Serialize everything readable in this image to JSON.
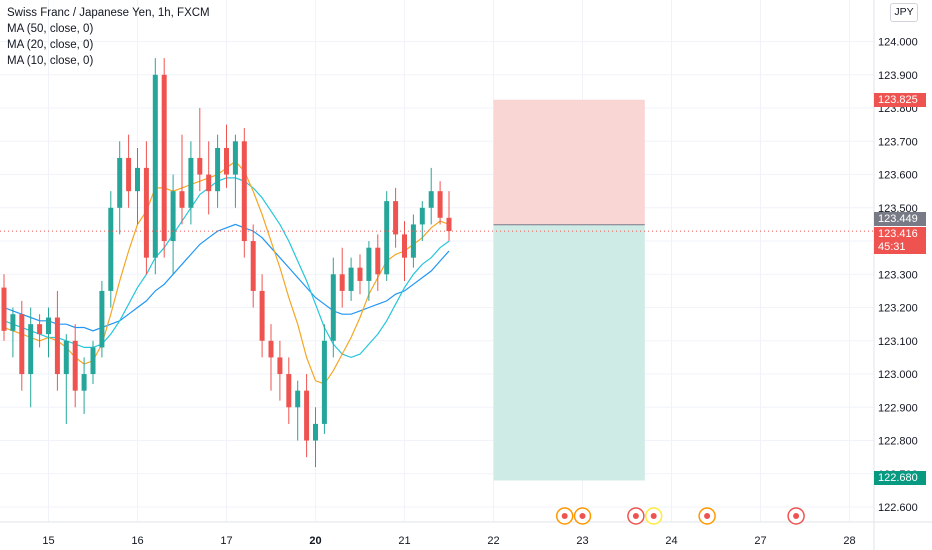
{
  "header": {
    "symbol_title": "Swiss Franc / Japanese Yen, 1h, FXCM",
    "indicators": [
      "MA (50, close, 0)",
      "MA (20, close, 0)",
      "MA (10, close, 0)"
    ],
    "currency_button": "JPY"
  },
  "price_tags": {
    "stop": "123.825",
    "entry": "123.449",
    "last": "123.416",
    "countdown": "45:31",
    "target": "122.680"
  },
  "colors": {
    "up": "#26a69a",
    "down": "#ef5350",
    "ma50": "#2196f3",
    "ma20": "#26c6da",
    "ma10": "#f6a623",
    "stop_zone": "#f9d5d3",
    "target_zone": "#cfebe6"
  },
  "chart_data": {
    "type": "candlestick",
    "title": "Swiss Franc / Japanese Yen, 1h, FXCM",
    "y_ticks": [
      "124.000",
      "123.900",
      "123.800",
      "123.700",
      "123.600",
      "123.500",
      "123.400",
      "123.300",
      "123.200",
      "123.100",
      "123.000",
      "122.900",
      "122.800",
      "122.700",
      "122.600"
    ],
    "ylim": [
      122.555,
      124.125
    ],
    "x_ticks": [
      {
        "label": "15",
        "index": 5
      },
      {
        "label": "16",
        "index": 15
      },
      {
        "label": "17",
        "index": 25
      },
      {
        "label": "20",
        "index": 35
      },
      {
        "label": "21",
        "index": 45
      },
      {
        "label": "22",
        "index": 55
      },
      {
        "label": "23",
        "index": 65
      },
      {
        "label": "24",
        "index": 75
      },
      {
        "label": "27",
        "index": 85
      },
      {
        "label": "28",
        "index": 95
      }
    ],
    "grid": true,
    "candles": [
      [
        123.26,
        123.3,
        123.1,
        123.13
      ],
      [
        123.13,
        123.2,
        123.05,
        123.18
      ],
      [
        123.18,
        123.22,
        122.95,
        123.0
      ],
      [
        123.0,
        123.2,
        122.9,
        123.15
      ],
      [
        123.15,
        123.18,
        123.08,
        123.12
      ],
      [
        123.12,
        123.2,
        123.05,
        123.17
      ],
      [
        123.17,
        123.25,
        122.95,
        123.0
      ],
      [
        123.0,
        123.12,
        122.85,
        123.1
      ],
      [
        123.1,
        123.15,
        122.9,
        122.95
      ],
      [
        122.95,
        123.05,
        122.88,
        123.0
      ],
      [
        123.0,
        123.1,
        122.97,
        123.08
      ],
      [
        123.08,
        123.28,
        123.05,
        123.25
      ],
      [
        123.25,
        123.55,
        123.2,
        123.5
      ],
      [
        123.5,
        123.7,
        123.42,
        123.65
      ],
      [
        123.65,
        123.72,
        123.5,
        123.55
      ],
      [
        123.55,
        123.68,
        123.45,
        123.62
      ],
      [
        123.62,
        123.7,
        123.3,
        123.35
      ],
      [
        123.35,
        123.95,
        123.3,
        123.9
      ],
      [
        123.9,
        123.95,
        123.35,
        123.4
      ],
      [
        123.4,
        123.6,
        123.3,
        123.55
      ],
      [
        123.55,
        123.72,
        123.45,
        123.5
      ],
      [
        123.5,
        123.7,
        123.45,
        123.65
      ],
      [
        123.65,
        123.8,
        123.55,
        123.6
      ],
      [
        123.6,
        123.7,
        123.48,
        123.55
      ],
      [
        123.55,
        123.72,
        123.5,
        123.68
      ],
      [
        123.68,
        123.75,
        123.56,
        123.6
      ],
      [
        123.6,
        123.72,
        123.5,
        123.7
      ],
      [
        123.7,
        123.74,
        123.35,
        123.4
      ],
      [
        123.4,
        123.45,
        123.2,
        123.25
      ],
      [
        123.25,
        123.3,
        123.05,
        123.1
      ],
      [
        123.1,
        123.15,
        122.95,
        123.05
      ],
      [
        123.05,
        123.1,
        122.92,
        123.0
      ],
      [
        123.0,
        123.05,
        122.85,
        122.9
      ],
      [
        122.9,
        122.98,
        122.8,
        122.95
      ],
      [
        122.95,
        123.0,
        122.75,
        122.8
      ],
      [
        122.8,
        122.9,
        122.72,
        122.85
      ],
      [
        122.85,
        123.15,
        122.82,
        123.1
      ],
      [
        123.1,
        123.35,
        123.05,
        123.3
      ],
      [
        123.3,
        123.38,
        123.2,
        123.25
      ],
      [
        123.25,
        123.35,
        123.22,
        123.32
      ],
      [
        123.32,
        123.36,
        123.24,
        123.28
      ],
      [
        123.28,
        123.4,
        123.22,
        123.38
      ],
      [
        123.38,
        123.42,
        123.25,
        123.3
      ],
      [
        123.3,
        123.55,
        123.28,
        123.52
      ],
      [
        123.52,
        123.56,
        123.38,
        123.42
      ],
      [
        123.42,
        123.46,
        123.28,
        123.35
      ],
      [
        123.35,
        123.48,
        123.32,
        123.45
      ],
      [
        123.45,
        123.52,
        123.4,
        123.5
      ],
      [
        123.5,
        123.62,
        123.45,
        123.55
      ],
      [
        123.55,
        123.58,
        123.45,
        123.47
      ],
      [
        123.47,
        123.55,
        123.4,
        123.43
      ]
    ],
    "ma10": [
      123.14,
      123.13,
      123.12,
      123.11,
      123.1,
      123.11,
      123.1,
      123.08,
      123.05,
      123.03,
      123.04,
      123.09,
      123.18,
      123.28,
      123.37,
      123.45,
      123.49,
      123.56,
      123.56,
      123.55,
      123.56,
      123.57,
      123.58,
      123.59,
      123.6,
      123.62,
      123.64,
      123.61,
      123.55,
      123.48,
      123.4,
      123.32,
      123.23,
      123.15,
      123.05,
      122.98,
      122.97,
      123.01,
      123.06,
      123.11,
      123.17,
      123.24,
      123.29,
      123.34,
      123.36,
      123.37,
      123.39,
      123.41,
      123.44,
      123.46,
      123.45
    ],
    "ma20": [
      123.16,
      123.15,
      123.14,
      123.13,
      123.12,
      123.11,
      123.11,
      123.1,
      123.09,
      123.08,
      123.08,
      123.09,
      123.12,
      123.16,
      123.21,
      123.26,
      123.3,
      123.35,
      123.38,
      123.42,
      123.46,
      123.5,
      123.54,
      123.56,
      123.58,
      123.59,
      123.59,
      123.58,
      123.56,
      123.53,
      123.49,
      123.45,
      123.4,
      123.34,
      123.28,
      123.21,
      123.14,
      123.09,
      123.06,
      123.05,
      123.06,
      123.09,
      123.12,
      123.16,
      123.21,
      123.26,
      123.3,
      123.33,
      123.35,
      123.38,
      123.4
    ],
    "ma50": [
      123.2,
      123.19,
      123.18,
      123.17,
      123.16,
      123.16,
      123.15,
      123.15,
      123.14,
      123.14,
      123.13,
      123.14,
      123.15,
      123.16,
      123.18,
      123.2,
      123.22,
      123.25,
      123.27,
      123.3,
      123.33,
      123.36,
      123.39,
      123.41,
      123.43,
      123.44,
      123.45,
      123.44,
      123.43,
      123.41,
      123.38,
      123.35,
      123.32,
      123.29,
      123.26,
      123.23,
      123.21,
      123.19,
      123.18,
      123.18,
      123.19,
      123.2,
      123.21,
      123.22,
      123.24,
      123.25,
      123.27,
      123.29,
      123.31,
      123.34,
      123.37
    ],
    "position": {
      "entry": 123.449,
      "stop": 123.825,
      "target": 122.68,
      "start_index": 55,
      "end_index": 72
    },
    "events": [
      {
        "index": 63,
        "color": "#ff9800"
      },
      {
        "index": 65,
        "color": "#ff9800"
      },
      {
        "index": 71,
        "color": "#ef5350"
      },
      {
        "index": 73,
        "color": "#ffeb3b"
      },
      {
        "index": 79,
        "color": "#ff9800"
      },
      {
        "index": 89,
        "color": "#ef5350"
      }
    ]
  }
}
